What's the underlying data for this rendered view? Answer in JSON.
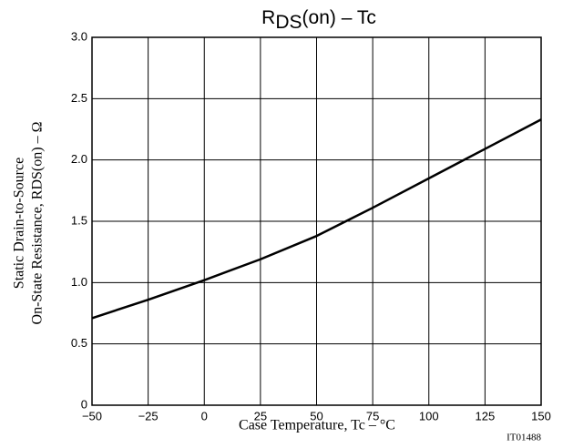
{
  "chart_data": {
    "type": "line",
    "title": {
      "symbol": "R",
      "subscript": "DS",
      "rest": "(on)  –  Tc"
    },
    "y_label": [
      "Static Drain-to-Source",
      "On-State Resistance, RDS(on)  –  Ω"
    ],
    "x_label": "Case Temperature, Tc  –  °C",
    "code": "IT01488",
    "x": [
      -50,
      -25,
      0,
      25,
      50,
      75,
      100,
      125,
      150
    ],
    "values": [
      0.71,
      0.86,
      1.02,
      1.19,
      1.38,
      1.61,
      1.85,
      2.09,
      2.33
    ],
    "color": "#000000",
    "xlim": [
      -50,
      150
    ],
    "xticks": [
      {
        "value": -50,
        "label": "−50"
      },
      {
        "value": -25,
        "label": "−25"
      },
      0,
      25,
      50,
      75,
      100,
      125,
      150
    ],
    "ylim": [
      0,
      3
    ],
    "yticks": [
      0,
      {
        "value": 0.5,
        "label": "0.5"
      },
      {
        "value": 1,
        "label": "1.0"
      },
      {
        "value": 1.5,
        "label": "1.5"
      },
      {
        "value": 2,
        "label": "2.0"
      },
      {
        "value": 2.5,
        "label": "2.5"
      },
      {
        "value": 3,
        "label": "3.0"
      }
    ],
    "grid": true
  }
}
